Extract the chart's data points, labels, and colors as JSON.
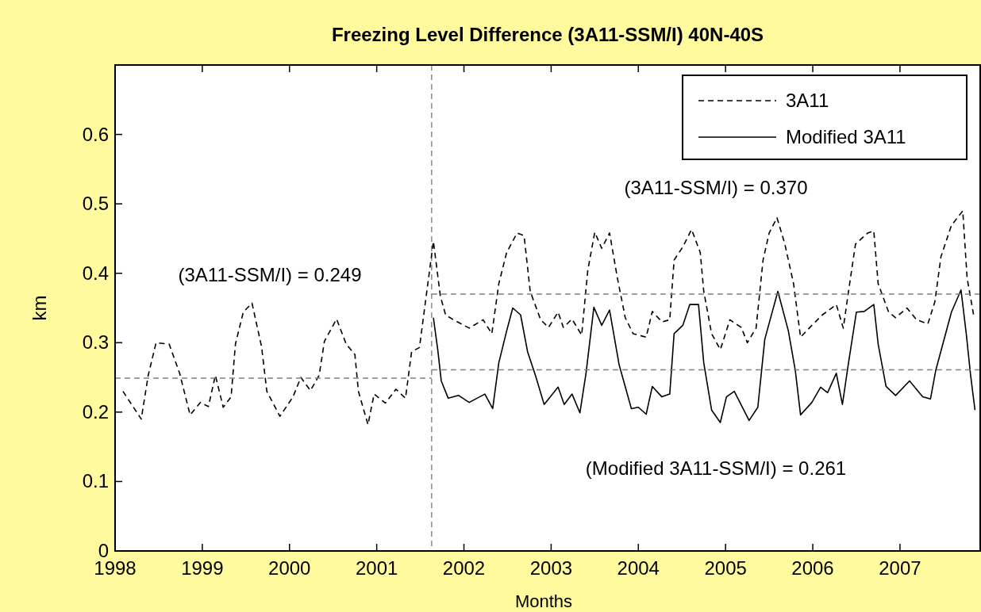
{
  "chart_data": {
    "type": "line",
    "title": "Freezing Level Difference (3A11-SSM/I) 40N-40S",
    "xlabel": "Months",
    "ylabel": "km",
    "xlim": [
      1998,
      2007.92
    ],
    "xticks": [
      1998,
      1999,
      2000,
      2001,
      2002,
      2003,
      2004,
      2005,
      2006,
      2007
    ],
    "ylim": [
      0,
      0.7
    ],
    "yticks": [
      0,
      0.1,
      0.2,
      0.3,
      0.4,
      0.5,
      0.6
    ],
    "grid": false,
    "legend": "top right",
    "series": [
      {
        "name": "3A11",
        "color": "#000000",
        "line_style": "dashed",
        "x": [
          1998.09,
          1998.3,
          1998.38,
          1998.47,
          1998.62,
          1998.74,
          1998.86,
          1998.98,
          1999.07,
          1999.15,
          1999.24,
          1999.33,
          1999.38,
          1999.47,
          1999.57,
          1999.68,
          1999.74,
          1999.89,
          2000.04,
          2000.13,
          2000.24,
          2000.34,
          2000.4,
          2000.54,
          2000.65,
          2000.75,
          2000.79,
          2000.9,
          2000.97,
          2001.1,
          2001.22,
          2001.33,
          2001.4,
          2001.49,
          2001.65,
          2001.73,
          2001.79,
          2001.88,
          2002.06,
          2002.22,
          2002.32,
          2002.4,
          2002.49,
          2002.61,
          2002.69,
          2002.76,
          2002.88,
          2002.97,
          2003.08,
          2003.14,
          2003.24,
          2003.35,
          2003.42,
          2003.5,
          2003.58,
          2003.67,
          2003.76,
          2003.85,
          2003.94,
          2004.09,
          2004.16,
          2004.27,
          2004.36,
          2004.41,
          2004.51,
          2004.61,
          2004.71,
          2004.75,
          2004.84,
          2004.94,
          2005.05,
          2005.18,
          2005.25,
          2005.35,
          2005.43,
          2005.5,
          2005.59,
          2005.68,
          2005.78,
          2005.86,
          2005.99,
          2006.11,
          2006.27,
          2006.35,
          2006.41,
          2006.49,
          2006.63,
          2006.7,
          2006.75,
          2006.87,
          2006.95,
          2007.08,
          2007.19,
          2007.32,
          2007.4,
          2007.47,
          2007.59,
          2007.72,
          2007.77,
          2007.85
        ],
        "values": [
          0.23,
          0.19,
          0.253,
          0.3,
          0.298,
          0.256,
          0.196,
          0.214,
          0.208,
          0.253,
          0.207,
          0.222,
          0.298,
          0.344,
          0.357,
          0.294,
          0.23,
          0.194,
          0.222,
          0.25,
          0.231,
          0.253,
          0.302,
          0.334,
          0.298,
          0.283,
          0.23,
          0.182,
          0.226,
          0.213,
          0.233,
          0.22,
          0.287,
          0.293,
          0.446,
          0.367,
          0.34,
          0.333,
          0.321,
          0.333,
          0.313,
          0.385,
          0.43,
          0.458,
          0.454,
          0.374,
          0.333,
          0.322,
          0.344,
          0.322,
          0.334,
          0.311,
          0.404,
          0.459,
          0.436,
          0.458,
          0.393,
          0.336,
          0.313,
          0.308,
          0.345,
          0.33,
          0.333,
          0.419,
          0.438,
          0.463,
          0.43,
          0.374,
          0.313,
          0.29,
          0.333,
          0.322,
          0.3,
          0.321,
          0.419,
          0.458,
          0.48,
          0.442,
          0.385,
          0.308,
          0.325,
          0.34,
          0.355,
          0.321,
          0.374,
          0.442,
          0.458,
          0.461,
          0.385,
          0.344,
          0.336,
          0.35,
          0.333,
          0.327,
          0.359,
          0.424,
          0.469,
          0.49,
          0.393,
          0.336
        ]
      },
      {
        "name": "Modified 3A11",
        "color": "#000000",
        "line_style": "solid",
        "x": [
          2001.65,
          2001.7,
          2001.74,
          2001.82,
          2001.94,
          2002.06,
          2002.24,
          2002.33,
          2002.4,
          2002.49,
          2002.56,
          2002.65,
          2002.73,
          2002.82,
          2002.92,
          2003.08,
          2003.15,
          2003.24,
          2003.33,
          2003.4,
          2003.49,
          2003.58,
          2003.67,
          2003.78,
          2003.92,
          2004.0,
          2004.09,
          2004.16,
          2004.27,
          2004.36,
          2004.41,
          2004.51,
          2004.59,
          2004.69,
          2004.75,
          2004.84,
          2004.94,
          2005.01,
          2005.1,
          2005.27,
          2005.37,
          2005.45,
          2005.6,
          2005.72,
          2005.8,
          2005.86,
          2005.99,
          2006.09,
          2006.17,
          2006.27,
          2006.34,
          2006.41,
          2006.5,
          2006.59,
          2006.7,
          2006.75,
          2006.84,
          2006.95,
          2007.11,
          2007.26,
          2007.35,
          2007.41,
          2007.59,
          2007.7,
          2007.76,
          2007.81,
          2007.86
        ],
        "values": [
          0.336,
          0.29,
          0.245,
          0.22,
          0.224,
          0.214,
          0.226,
          0.205,
          0.271,
          0.317,
          0.35,
          0.34,
          0.287,
          0.253,
          0.211,
          0.236,
          0.211,
          0.226,
          0.199,
          0.256,
          0.351,
          0.325,
          0.347,
          0.268,
          0.205,
          0.207,
          0.197,
          0.237,
          0.222,
          0.226,
          0.313,
          0.325,
          0.355,
          0.355,
          0.271,
          0.203,
          0.185,
          0.222,
          0.23,
          0.188,
          0.207,
          0.305,
          0.374,
          0.317,
          0.26,
          0.196,
          0.214,
          0.236,
          0.228,
          0.256,
          0.211,
          0.271,
          0.344,
          0.345,
          0.355,
          0.298,
          0.237,
          0.224,
          0.245,
          0.222,
          0.219,
          0.26,
          0.344,
          0.376,
          0.313,
          0.253,
          0.203
        ]
      },
      {
        "color": "#808080",
        "line_style": "dashed",
        "x": [
          1998,
          2001.63
        ],
        "values": [
          0.249,
          0.249
        ]
      },
      {
        "color": "#808080",
        "line_style": "dashed",
        "x": [
          2001.63,
          2007.92
        ],
        "values": [
          0.37,
          0.37
        ]
      },
      {
        "color": "#808080",
        "line_style": "dashed",
        "x": [
          2001.63,
          2007.92
        ],
        "values": [
          0.261,
          0.261
        ]
      }
    ],
    "ref_lines": [
      {
        "axis": "x",
        "value": 2001.63,
        "color": "#808080",
        "line_style": "dashed"
      }
    ],
    "annotations": [
      "(3A11-SSM/I) = 0.249",
      "(3A11-SSM/I) = 0.370",
      "(Modified 3A11-SSM/I) = 0.261"
    ]
  }
}
